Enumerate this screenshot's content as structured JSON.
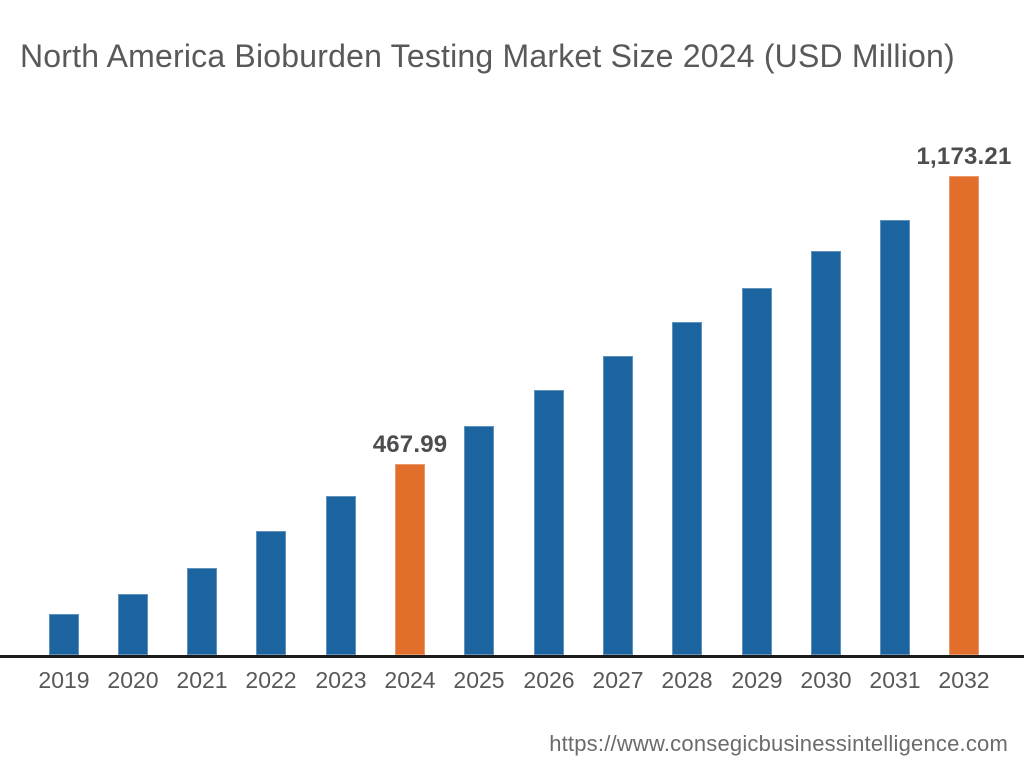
{
  "page": {
    "background_color": "#ffffff"
  },
  "chart_data": {
    "type": "bar",
    "title": "North America Bioburden Testing Market Size 2024 (USD Million)",
    "xlabel": "",
    "ylabel": "",
    "categories": [
      "2019",
      "2020",
      "2021",
      "2022",
      "2023",
      "2024",
      "2025",
      "2026",
      "2027",
      "2028",
      "2029",
      "2030",
      "2031",
      "2032"
    ],
    "values": [
      100,
      149,
      212,
      305,
      390,
      467.99,
      561,
      649,
      732,
      817,
      898,
      991,
      1066,
      1173.21
    ],
    "value_labels": {
      "2024": "467.99",
      "2032": "1,173.21"
    },
    "highlighted_categories": [
      "2024",
      "2032"
    ],
    "ylim": [
      0,
      1250
    ],
    "grid": false,
    "legend": false,
    "colors": {
      "bar_default": "#1c649f",
      "bar_highlight": "#e26e2b",
      "axis_line": "#1b1b1b",
      "value_label_text": "#4c4d4f",
      "tick_text": "#57585b",
      "title_text": "#58595b",
      "url_text": "#6a6b6e",
      "background": "#ffffff"
    }
  },
  "footer": {
    "source_url": "https://www.consegicbusinessintelligence.com"
  }
}
